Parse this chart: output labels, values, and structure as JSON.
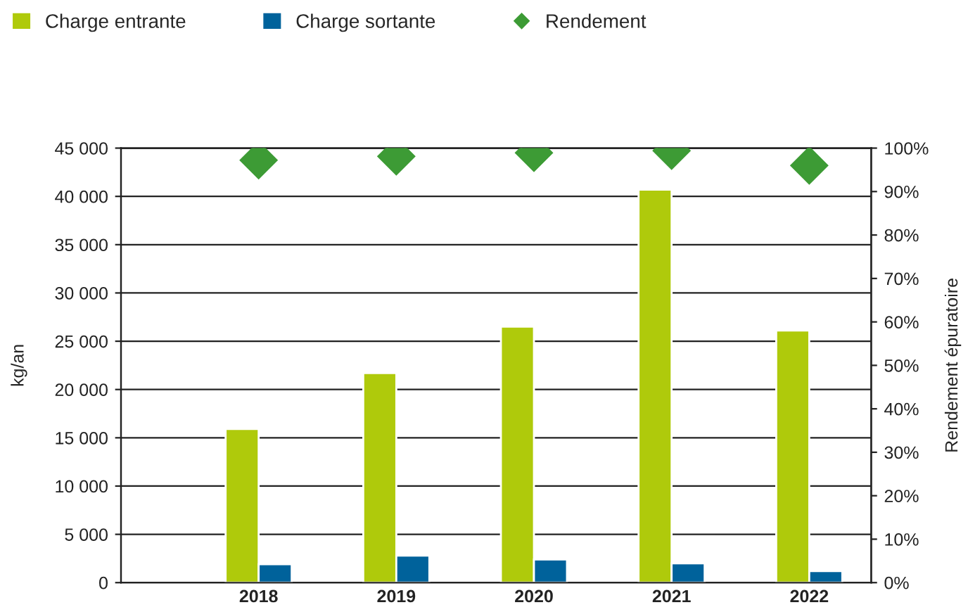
{
  "chart_data": {
    "type": "bar",
    "categories": [
      "2018",
      "2019",
      "2020",
      "2021",
      "2022"
    ],
    "ylabel": "kg/an",
    "y2label": "Rendement épuratoire",
    "series": [
      {
        "name": "Charge entrante",
        "color": "#afca0b",
        "values": [
          15900,
          21700,
          26500,
          40700,
          26100
        ]
      },
      {
        "name": "Charge sortante",
        "color": "#00629b",
        "values": [
          1900,
          2800,
          2400,
          2000,
          1200
        ]
      },
      {
        "name": "Rendement",
        "type": "scatter",
        "axis": "y2",
        "color": "#3d9b35",
        "marker": "diamond",
        "values": [
          97.2,
          98.1,
          98.9,
          99.4,
          96.0
        ]
      }
    ],
    "ylim": [
      0,
      45000
    ],
    "yticks": [
      0,
      {
        "value": 5000,
        "label": "5 000"
      },
      {
        "value": 10000,
        "label": "10 000"
      },
      {
        "value": 15000,
        "label": "15 000"
      },
      {
        "value": 20000,
        "label": "20 000"
      },
      {
        "value": 25000,
        "label": "25 000"
      },
      {
        "value": 30000,
        "label": "30 000"
      },
      {
        "value": 35000,
        "label": "35 000"
      },
      {
        "value": 40000,
        "label": "40 000"
      },
      {
        "value": 45000,
        "label": "45 000"
      }
    ],
    "y2lim": [
      0,
      100
    ],
    "y2ticks": [
      {
        "value": 0,
        "label": "0%"
      },
      {
        "value": 10,
        "label": "10%"
      },
      {
        "value": 20,
        "label": "20%"
      },
      {
        "value": 30,
        "label": "30%"
      },
      {
        "value": 40,
        "label": "40%"
      },
      {
        "value": 50,
        "label": "50%"
      },
      {
        "value": 60,
        "label": "60%"
      },
      {
        "value": 70,
        "label": "70%"
      },
      {
        "value": 80,
        "label": "80%"
      },
      {
        "value": 90,
        "label": "90%"
      },
      {
        "value": 100,
        "label": "100%"
      }
    ],
    "grid": "y",
    "legend": "top"
  }
}
